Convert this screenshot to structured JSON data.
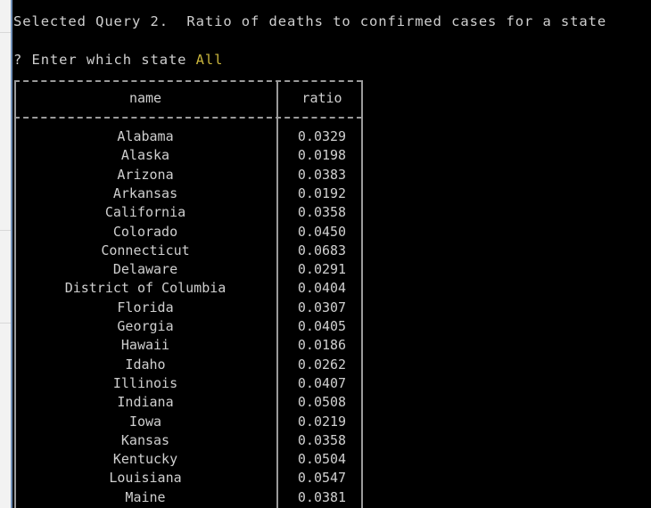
{
  "terminal": {
    "selected_query": "Selected Query 2.  Ratio of deaths to confirmed cases for a state",
    "prompt": "? Enter which state ",
    "answer": "All"
  },
  "colors": {
    "background": "#000000",
    "text": "#cfcfcf",
    "answer": "#c8b43c"
  },
  "table": {
    "headers": [
      "name",
      "ratio"
    ],
    "rows": [
      {
        "name": "Alabama",
        "ratio": "0.0329"
      },
      {
        "name": "Alaska",
        "ratio": "0.0198"
      },
      {
        "name": "Arizona",
        "ratio": "0.0383"
      },
      {
        "name": "Arkansas",
        "ratio": "0.0192"
      },
      {
        "name": "California",
        "ratio": "0.0358"
      },
      {
        "name": "Colorado",
        "ratio": "0.0450"
      },
      {
        "name": "Connecticut",
        "ratio": "0.0683"
      },
      {
        "name": "Delaware",
        "ratio": "0.0291"
      },
      {
        "name": "District of Columbia",
        "ratio": "0.0404"
      },
      {
        "name": "Florida",
        "ratio": "0.0307"
      },
      {
        "name": "Georgia",
        "ratio": "0.0405"
      },
      {
        "name": "Hawaii",
        "ratio": "0.0186"
      },
      {
        "name": "Idaho",
        "ratio": "0.0262"
      },
      {
        "name": "Illinois",
        "ratio": "0.0407"
      },
      {
        "name": "Indiana",
        "ratio": "0.0508"
      },
      {
        "name": "Iowa",
        "ratio": "0.0219"
      },
      {
        "name": "Kansas",
        "ratio": "0.0358"
      },
      {
        "name": "Kentucky",
        "ratio": "0.0504"
      },
      {
        "name": "Louisiana",
        "ratio": "0.0547"
      },
      {
        "name": "Maine",
        "ratio": "0.0381"
      }
    ]
  }
}
